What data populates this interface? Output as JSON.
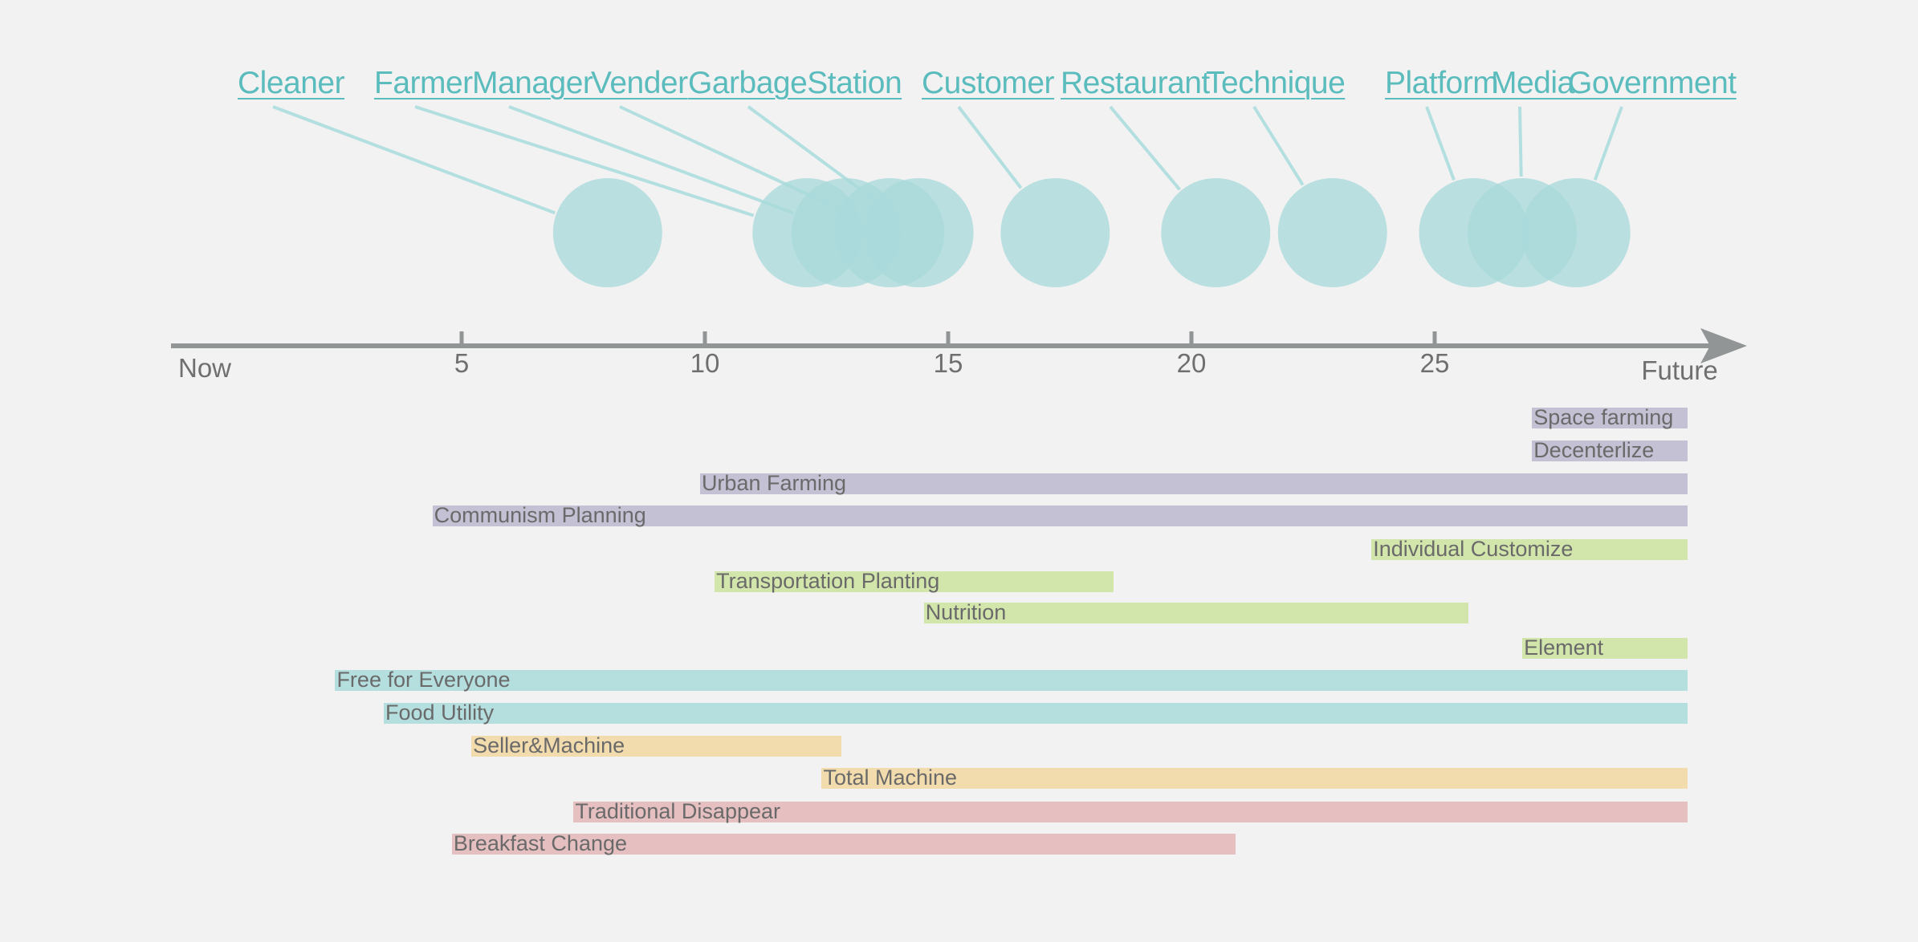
{
  "stakeholders": [
    {
      "label": "Cleaner",
      "x": 8
    },
    {
      "label": "Farmer",
      "x": 12.1
    },
    {
      "label": "Manager",
      "x": 12.9
    },
    {
      "label": "Vender",
      "x": 13.8
    },
    {
      "label": "GarbageStation",
      "x": 14.4
    },
    {
      "label": "Customer",
      "x": 17.2
    },
    {
      "label": "Restaurant",
      "x": 20.5
    },
    {
      "label": "Technique",
      "x": 22.9
    },
    {
      "label": "Platform",
      "x": 25.8
    },
    {
      "label": "Media",
      "x": 26.8
    },
    {
      "label": "Government",
      "x": 27.9
    }
  ],
  "axis": {
    "start_label": "Now",
    "end_label": "Future",
    "ticks": [
      {
        "value": 5,
        "label": "5"
      },
      {
        "value": 10,
        "label": "10"
      },
      {
        "value": 15,
        "label": "15"
      },
      {
        "value": 20,
        "label": "20"
      },
      {
        "value": 25,
        "label": "25"
      }
    ]
  },
  "colors": {
    "circle": "#a9dadb",
    "leader": "#b4dfe0",
    "axis": "#929596",
    "purple": "#c4c1d4",
    "green": "#d2e6ac",
    "teal": "#b5dedf",
    "orange": "#f2dcad",
    "pink": "#e6c0c1"
  },
  "bars": [
    {
      "label": "Space farming",
      "start": 27.0,
      "end": 30.2,
      "color": "purple"
    },
    {
      "label": "Decenterlize",
      "start": 27.0,
      "end": 30.2,
      "color": "purple"
    },
    {
      "label": "Urban Farming",
      "start": 9.9,
      "end": 30.2,
      "color": "purple"
    },
    {
      "label": "Communism Planning",
      "start": 4.4,
      "end": 30.2,
      "color": "purple"
    },
    {
      "label": "Individual Customize",
      "start": 23.7,
      "end": 30.2,
      "color": "green"
    },
    {
      "label": "Transportation Planting",
      "start": 10.2,
      "end": 18.4,
      "color": "green"
    },
    {
      "label": "Nutrition",
      "start": 14.5,
      "end": 25.7,
      "color": "green"
    },
    {
      "label": "Element",
      "start": 26.8,
      "end": 30.2,
      "color": "green"
    },
    {
      "label": "Free for Everyone",
      "start": 2.4,
      "end": 30.2,
      "color": "teal"
    },
    {
      "label": "Food Utility",
      "start": 3.4,
      "end": 30.2,
      "color": "teal"
    },
    {
      "label": "Seller&Machine",
      "start": 5.2,
      "end": 12.8,
      "color": "orange"
    },
    {
      "label": "Total Machine",
      "start": 12.4,
      "end": 30.2,
      "color": "orange"
    },
    {
      "label": "Traditional Disappear",
      "start": 7.3,
      "end": 30.2,
      "color": "pink"
    },
    {
      "label": "Breakfast Change",
      "start": 4.8,
      "end": 20.9,
      "color": "pink"
    }
  ]
}
